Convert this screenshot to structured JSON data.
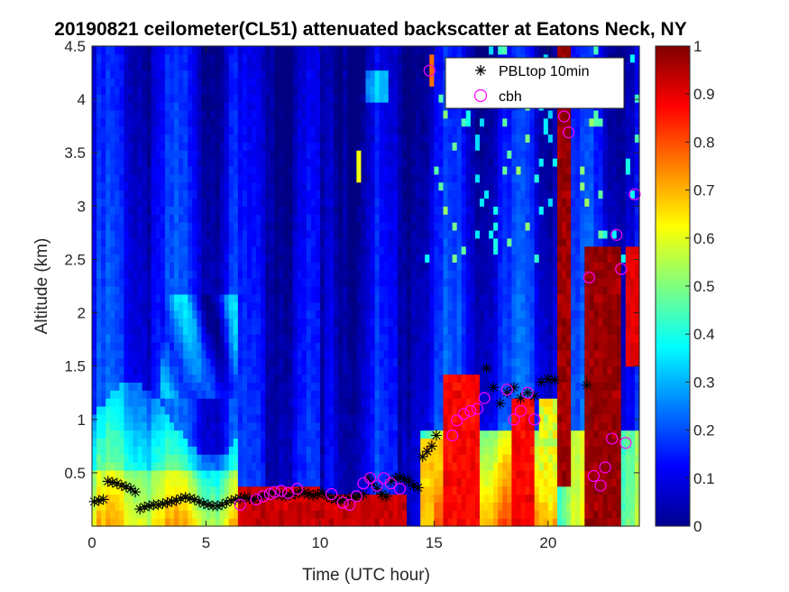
{
  "chart_data": {
    "type": "heatmap",
    "title": "20190821 ceilometer(CL51) attenuated backscatter at Eatons Neck, NY",
    "xlabel": "Time (UTC hour)",
    "ylabel": "Altitude (km)",
    "xlim": [
      0,
      24
    ],
    "ylim": [
      0,
      4.5
    ],
    "xticks": [
      0,
      5,
      10,
      15,
      20
    ],
    "xtick_labels": [
      "0",
      "5",
      "10",
      "15",
      "20"
    ],
    "yticks": [
      0.5,
      1,
      1.5,
      2,
      2.5,
      3,
      3.5,
      4,
      4.5
    ],
    "ytick_labels": [
      "0.5",
      "1",
      "1.5",
      "2",
      "2.5",
      "3",
      "3.5",
      "4",
      "4.5"
    ],
    "colorbar": {
      "colormap": "jet",
      "clim": [
        0,
        1
      ],
      "ticks": [
        0,
        0.1,
        0.2,
        0.3,
        0.4,
        0.5,
        0.6,
        0.7,
        0.8,
        0.9,
        1
      ],
      "tick_labels": [
        "0",
        "0.1",
        "0.2",
        "0.3",
        "0.4",
        "0.5",
        "0.6",
        "0.7",
        "0.8",
        "0.9",
        "1"
      ]
    },
    "legend": {
      "location": "top-right",
      "entries": [
        {
          "label": "PBLtop 10min",
          "marker": "asterisk",
          "color": "#000000"
        },
        {
          "label": "cbh",
          "marker": "circle",
          "color": "#ff00ff"
        }
      ]
    },
    "series": [
      {
        "name": "PBLtop 10min",
        "marker": "asterisk",
        "color": "#000000",
        "x": [
          0.1,
          0.3,
          0.5,
          0.7,
          0.9,
          1.1,
          1.3,
          1.5,
          1.7,
          1.9,
          2.1,
          2.3,
          2.5,
          2.7,
          2.9,
          3.1,
          3.3,
          3.5,
          3.7,
          3.9,
          4.1,
          4.3,
          4.5,
          4.7,
          4.9,
          5.1,
          5.3,
          5.5,
          5.7,
          5.9,
          6.1,
          6.3,
          6.5,
          6.7,
          6.9,
          7.1,
          7.3,
          7.5,
          7.7,
          7.9,
          8.1,
          8.3,
          8.5,
          8.7,
          8.9,
          9.1,
          9.3,
          9.5,
          9.7,
          9.9,
          10.1,
          10.3,
          10.5,
          10.7,
          10.9,
          11.1,
          11.3,
          11.5,
          11.7,
          11.9,
          12.1,
          12.3,
          12.5,
          12.7,
          12.9,
          13.1,
          13.3,
          13.5,
          13.7,
          13.9,
          14.1,
          14.3,
          14.5,
          14.7,
          14.9,
          15.1,
          17.3,
          17.6,
          17.9,
          18.2,
          18.5,
          18.8,
          19.1,
          19.4,
          19.7,
          20.0,
          20.3,
          21.7
        ],
        "y": [
          0.23,
          0.24,
          0.25,
          0.42,
          0.41,
          0.4,
          0.38,
          0.37,
          0.35,
          0.32,
          0.16,
          0.18,
          0.19,
          0.2,
          0.2,
          0.21,
          0.22,
          0.23,
          0.24,
          0.26,
          0.27,
          0.26,
          0.25,
          0.23,
          0.21,
          0.2,
          0.19,
          0.19,
          0.2,
          0.22,
          0.24,
          0.25,
          0.26,
          0.27,
          0.26,
          0.25,
          0.27,
          0.28,
          0.3,
          0.31,
          0.3,
          0.29,
          0.28,
          0.29,
          0.3,
          0.32,
          0.31,
          0.3,
          0.29,
          0.3,
          0.31,
          0.28,
          0.26,
          0.25,
          0.24,
          0.25,
          0.26,
          0.27,
          0.28,
          0.3,
          0.45,
          0.4,
          0.35,
          0.3,
          0.28,
          0.42,
          0.45,
          0.46,
          0.44,
          0.42,
          0.38,
          0.36,
          0.65,
          0.7,
          0.75,
          0.85,
          1.48,
          1.3,
          1.15,
          1.25,
          1.3,
          1.2,
          1.25,
          1.22,
          1.35,
          1.38,
          1.37,
          1.32
        ]
      },
      {
        "name": "cbh",
        "marker": "circle",
        "color": "#ff00ff",
        "x": [
          6.5,
          7.2,
          7.5,
          7.8,
          8.0,
          8.3,
          8.6,
          9.0,
          10.5,
          11.0,
          11.3,
          11.6,
          11.9,
          12.2,
          12.5,
          12.8,
          13.1,
          13.5,
          14.8,
          15.8,
          16.0,
          16.3,
          16.6,
          16.9,
          17.2,
          18.2,
          18.5,
          18.8,
          19.1,
          19.4,
          20.7,
          20.9,
          21.2,
          21.8,
          22.0,
          22.3,
          22.5,
          22.8,
          23.0,
          23.2,
          23.4,
          23.8
        ],
        "y": [
          0.2,
          0.25,
          0.28,
          0.3,
          0.32,
          0.33,
          0.31,
          0.35,
          0.3,
          0.22,
          0.2,
          0.28,
          0.4,
          0.45,
          0.38,
          0.45,
          0.4,
          0.35,
          4.27,
          0.85,
          0.99,
          1.05,
          1.08,
          1.1,
          1.2,
          1.28,
          1.0,
          1.08,
          1.25,
          1.0,
          3.84,
          3.69,
          4.34,
          2.33,
          0.47,
          0.38,
          0.55,
          0.82,
          2.73,
          2.41,
          0.78,
          3.11
        ]
      }
    ],
    "heatmap_description_blocks": [
      {
        "t": [
          6.5,
          9.9
        ],
        "z": [
          0,
          0.4
        ],
        "value": 0.95
      },
      {
        "t": [
          10.0,
          13.8
        ],
        "z": [
          0,
          0.3
        ],
        "value": 0.95
      },
      {
        "t": [
          14.5,
          15.5
        ],
        "z": [
          0,
          0.8
        ],
        "value": 0.7
      },
      {
        "t": [
          15.5,
          17.0
        ],
        "z": [
          0,
          1.4
        ],
        "value": 0.9
      },
      {
        "t": [
          18.5,
          19.5
        ],
        "z": [
          0,
          1.2
        ],
        "value": 0.9
      },
      {
        "t": [
          20.4,
          21.1
        ],
        "z": [
          0.4,
          4.5
        ],
        "value": 1.0
      },
      {
        "t": [
          21.7,
          23.3
        ],
        "z": [
          0,
          2.6
        ],
        "value": 1.0
      }
    ]
  }
}
